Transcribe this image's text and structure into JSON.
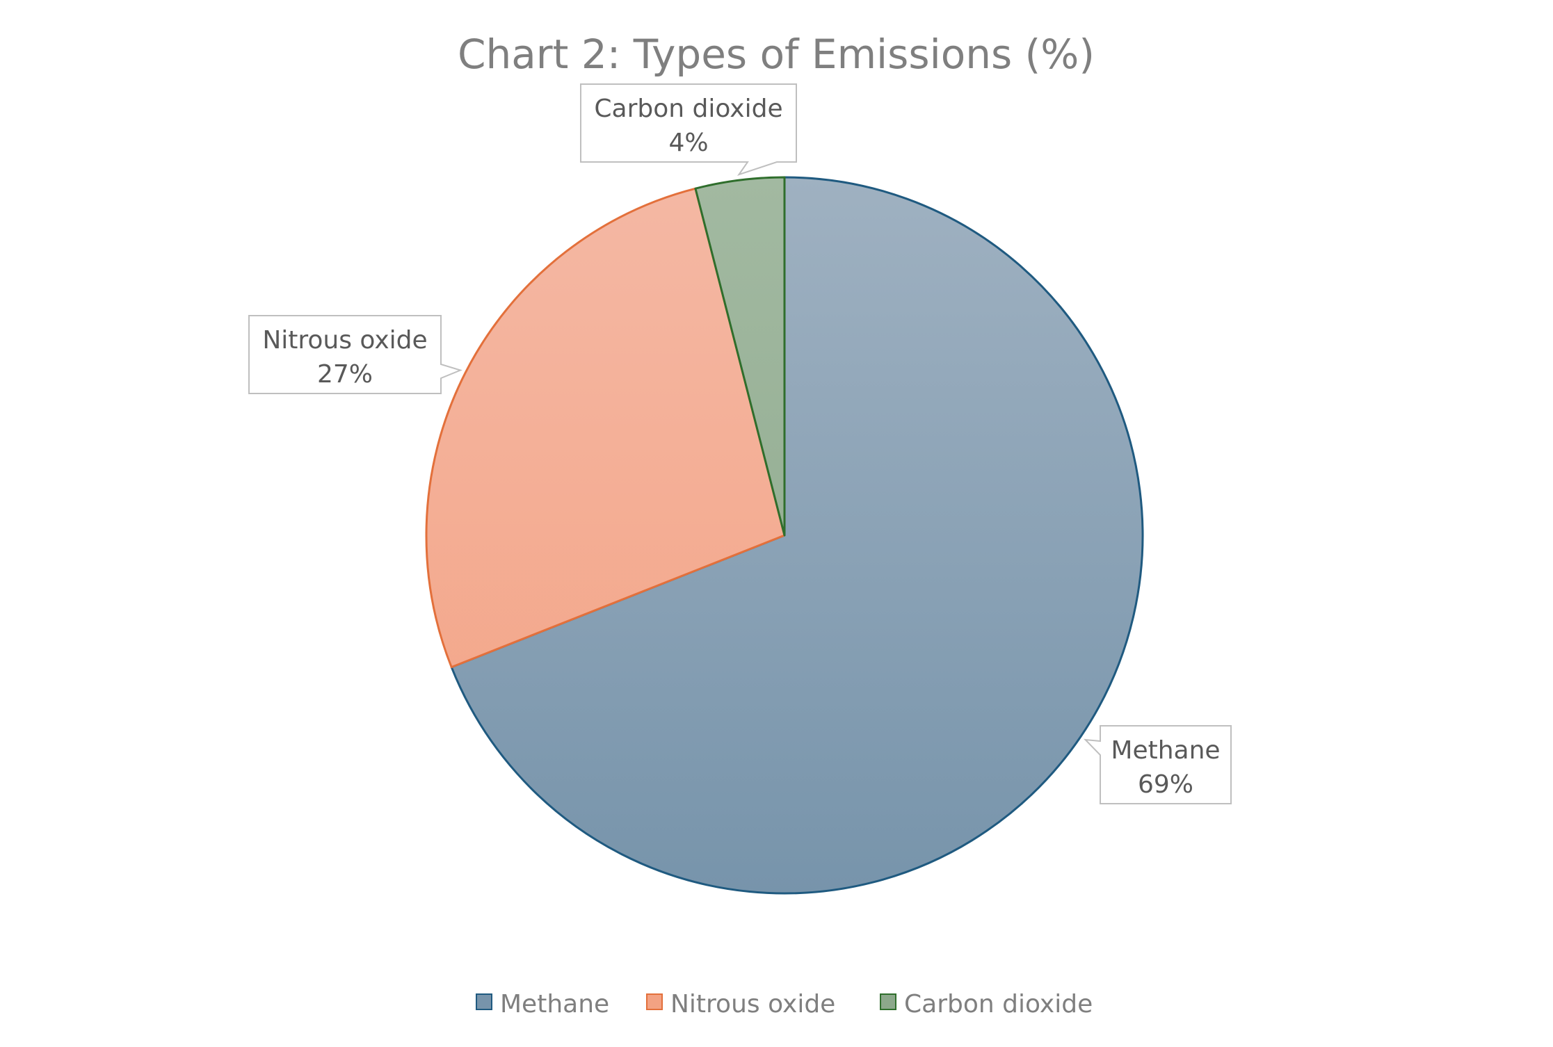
{
  "chart_data": {
    "type": "pie",
    "title": "Chart 2: Types of Emissions (%)",
    "categories": [
      "Methane",
      "Nitrous oxide",
      "Carbon dioxide"
    ],
    "values": [
      69,
      27,
      4
    ],
    "data_labels": [
      "69%",
      "27%",
      "4%"
    ],
    "colors": {
      "Methane": {
        "fill_top": "#9fb1c1",
        "fill_bottom": "#7794ab",
        "stroke": "#1f5a80"
      },
      "Nitrous oxide": {
        "fill_top": "#f4b8a4",
        "fill_bottom": "#f3a283",
        "stroke": "#e3703b"
      },
      "Carbon dioxide": {
        "fill_top": "#a2b9a1",
        "fill_bottom": "#8ca88b",
        "stroke": "#2f6e2c"
      }
    },
    "start_angle": "12 o'clock",
    "direction": "clockwise",
    "legend_position": "bottom"
  }
}
